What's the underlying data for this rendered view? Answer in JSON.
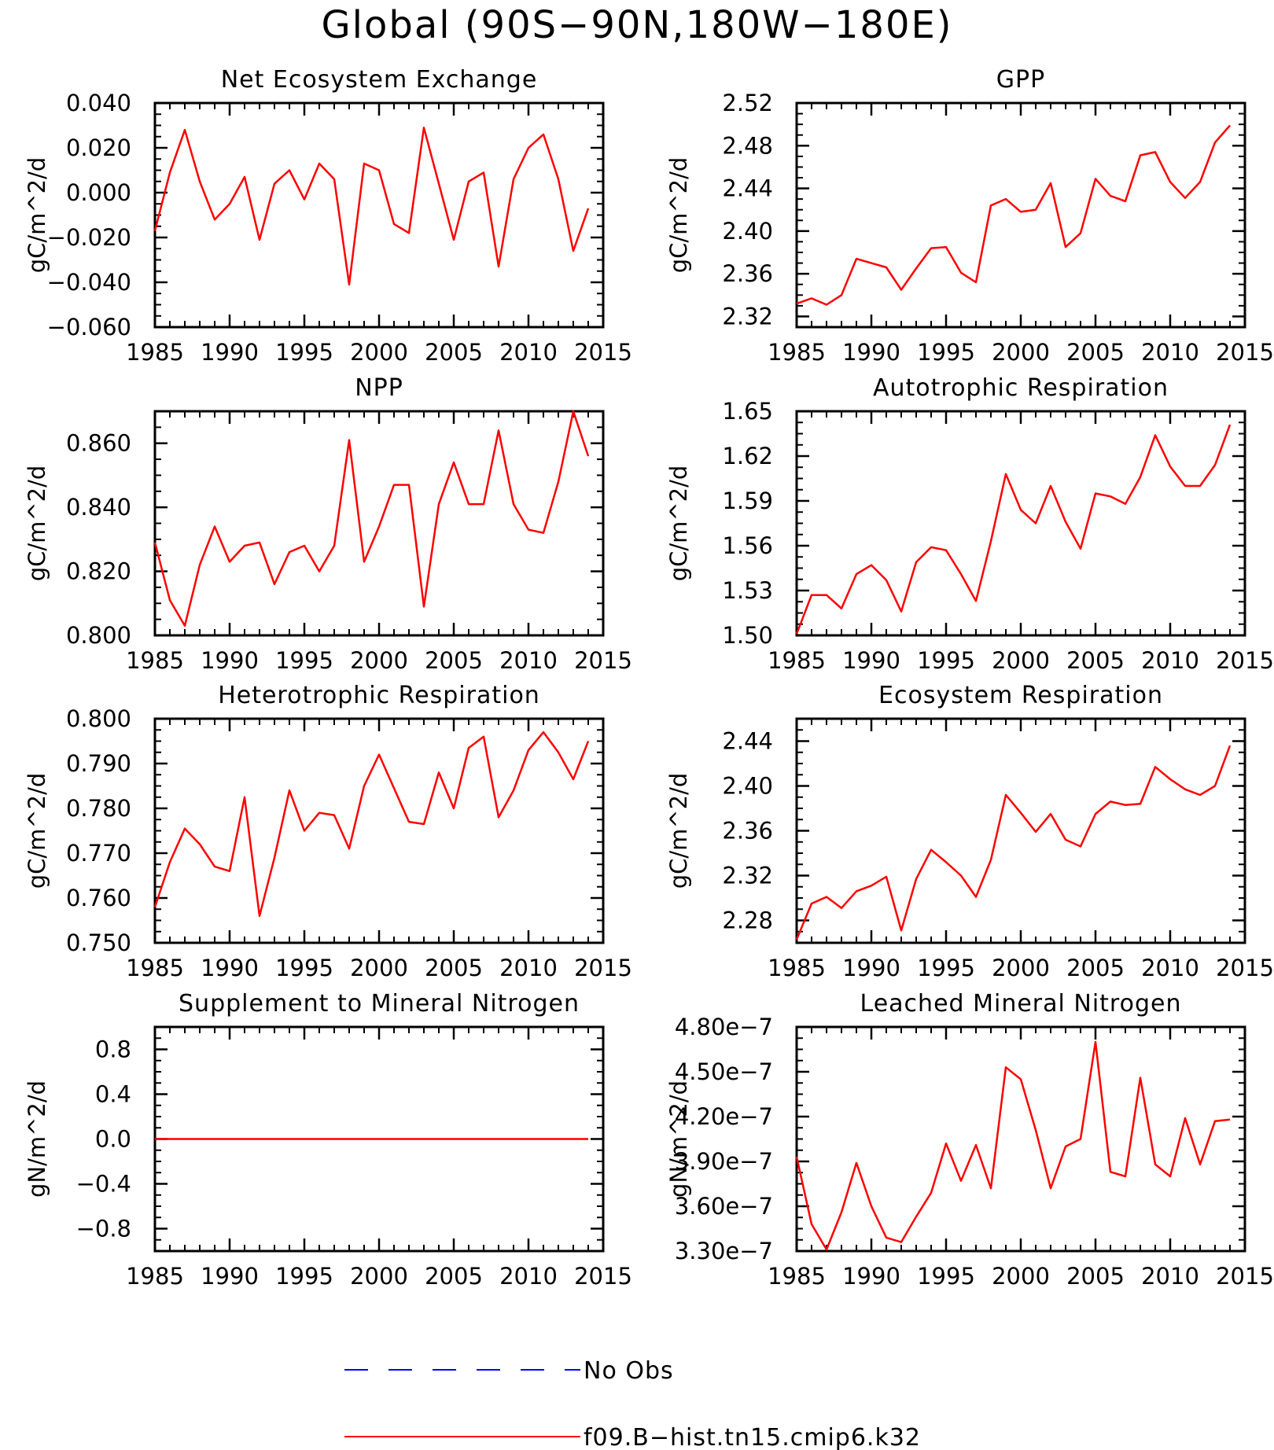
{
  "figure": {
    "title": "Global (90S−90N,180W−180E)"
  },
  "legend": [
    {
      "label": "No Obs",
      "color": "#0000ff",
      "style": "dashed"
    },
    {
      "label": "f09.B−hist.tn15.cmip6.k32",
      "color": "#ff0000",
      "style": "solid"
    }
  ],
  "chart_data": [
    {
      "type": "line",
      "title": "Net Ecosystem Exchange",
      "ylabel": "gC/m^2/d",
      "xlim": [
        1985,
        2015
      ],
      "ylim": [
        -0.06,
        0.04
      ],
      "yticks": [
        -0.06,
        -0.04,
        -0.02,
        0.0,
        0.02,
        0.04
      ],
      "ytick_labels": [
        "−0.060",
        "−0.040",
        "−0.020",
        "0.000",
        "0.020",
        "0.040"
      ],
      "xticks": [
        1985,
        1990,
        1995,
        2000,
        2005,
        2010,
        2015
      ],
      "xtick_labels": [
        "1985",
        "1990",
        "1995",
        "2000",
        "2005",
        "2010",
        "2015"
      ],
      "series": [
        {
          "name": "f09.B−hist.tn15.cmip6.k32",
          "color": "#ff0000",
          "x": [
            1985,
            1986,
            1987,
            1988,
            1989,
            1990,
            1991,
            1992,
            1993,
            1994,
            1995,
            1996,
            1997,
            1998,
            1999,
            2000,
            2001,
            2002,
            2003,
            2004,
            2005,
            2006,
            2007,
            2008,
            2009,
            2010,
            2011,
            2012,
            2013,
            2014
          ],
          "y": [
            -0.017,
            0.009,
            0.028,
            0.005,
            -0.012,
            -0.005,
            0.007,
            -0.021,
            0.004,
            0.01,
            -0.003,
            0.013,
            0.006,
            -0.041,
            0.013,
            0.01,
            -0.014,
            -0.018,
            0.029,
            0.004,
            -0.021,
            0.005,
            0.009,
            -0.033,
            0.006,
            0.02,
            0.026,
            0.006,
            -0.026,
            -0.007
          ]
        }
      ]
    },
    {
      "type": "line",
      "title": "GPP",
      "ylabel": "gC/m^2/d",
      "xlim": [
        1985,
        2015
      ],
      "ylim": [
        2.31,
        2.52
      ],
      "yticks": [
        2.32,
        2.36,
        2.4,
        2.44,
        2.48,
        2.52
      ],
      "ytick_labels": [
        "2.32",
        "2.36",
        "2.40",
        "2.44",
        "2.48",
        "2.52"
      ],
      "xticks": [
        1985,
        1990,
        1995,
        2000,
        2005,
        2010,
        2015
      ],
      "xtick_labels": [
        "1985",
        "1990",
        "1995",
        "2000",
        "2005",
        "2010",
        "2015"
      ],
      "series": [
        {
          "name": "f09.B−hist.tn15.cmip6.k32",
          "color": "#ff0000",
          "x": [
            1985,
            1986,
            1987,
            1988,
            1989,
            1990,
            1991,
            1992,
            1993,
            1994,
            1995,
            1996,
            1997,
            1998,
            1999,
            2000,
            2001,
            2002,
            2003,
            2004,
            2005,
            2006,
            2007,
            2008,
            2009,
            2010,
            2011,
            2012,
            2013,
            2014
          ],
          "y": [
            2.332,
            2.337,
            2.331,
            2.34,
            2.374,
            2.37,
            2.366,
            2.345,
            2.365,
            2.384,
            2.385,
            2.361,
            2.352,
            2.424,
            2.43,
            2.418,
            2.42,
            2.445,
            2.385,
            2.398,
            2.449,
            2.433,
            2.428,
            2.471,
            2.474,
            2.446,
            2.431,
            2.446,
            2.483,
            2.499
          ]
        }
      ]
    },
    {
      "type": "line",
      "title": "NPP",
      "ylabel": "gC/m^2/d",
      "xlim": [
        1985,
        2015
      ],
      "ylim": [
        0.8,
        0.87
      ],
      "yticks": [
        0.8,
        0.82,
        0.84,
        0.86
      ],
      "ytick_labels": [
        "0.800",
        "0.820",
        "0.840",
        "0.860"
      ],
      "xticks": [
        1985,
        1990,
        1995,
        2000,
        2005,
        2010,
        2015
      ],
      "xtick_labels": [
        "1985",
        "1990",
        "1995",
        "2000",
        "2005",
        "2010",
        "2015"
      ],
      "series": [
        {
          "name": "f09.B−hist.tn15.cmip6.k32",
          "color": "#ff0000",
          "x": [
            1985,
            1986,
            1987,
            1988,
            1989,
            1990,
            1991,
            1992,
            1993,
            1994,
            1995,
            1996,
            1997,
            1998,
            1999,
            2000,
            2001,
            2002,
            2003,
            2004,
            2005,
            2006,
            2007,
            2008,
            2009,
            2010,
            2011,
            2012,
            2013,
            2014
          ],
          "y": [
            0.829,
            0.811,
            0.803,
            0.822,
            0.834,
            0.823,
            0.828,
            0.829,
            0.816,
            0.826,
            0.828,
            0.82,
            0.828,
            0.861,
            0.823,
            0.834,
            0.847,
            0.847,
            0.809,
            0.841,
            0.854,
            0.841,
            0.841,
            0.864,
            0.841,
            0.833,
            0.832,
            0.848,
            0.87,
            0.856
          ]
        }
      ]
    },
    {
      "type": "line",
      "title": "Autotrophic Respiration",
      "ylabel": "gC/m^2/d",
      "xlim": [
        1985,
        2015
      ],
      "ylim": [
        1.5,
        1.65
      ],
      "yticks": [
        1.5,
        1.53,
        1.56,
        1.59,
        1.62,
        1.65
      ],
      "ytick_labels": [
        "1.50",
        "1.53",
        "1.56",
        "1.59",
        "1.62",
        "1.65"
      ],
      "xticks": [
        1985,
        1990,
        1995,
        2000,
        2005,
        2010,
        2015
      ],
      "xtick_labels": [
        "1985",
        "1990",
        "1995",
        "2000",
        "2005",
        "2010",
        "2015"
      ],
      "series": [
        {
          "name": "f09.B−hist.tn15.cmip6.k32",
          "color": "#ff0000",
          "x": [
            1985,
            1986,
            1987,
            1988,
            1989,
            1990,
            1991,
            1992,
            1993,
            1994,
            1995,
            1996,
            1997,
            1998,
            1999,
            2000,
            2001,
            2002,
            2003,
            2004,
            2005,
            2006,
            2007,
            2008,
            2009,
            2010,
            2011,
            2012,
            2013,
            2014
          ],
          "y": [
            1.501,
            1.527,
            1.527,
            1.518,
            1.541,
            1.547,
            1.537,
            1.516,
            1.549,
            1.559,
            1.557,
            1.541,
            1.523,
            1.563,
            1.608,
            1.584,
            1.575,
            1.6,
            1.576,
            1.558,
            1.595,
            1.593,
            1.588,
            1.606,
            1.634,
            1.613,
            1.6,
            1.6,
            1.614,
            1.641
          ]
        }
      ]
    },
    {
      "type": "line",
      "title": "Heterotrophic Respiration",
      "ylabel": "gC/m^2/d",
      "xlim": [
        1985,
        2015
      ],
      "ylim": [
        0.75,
        0.8
      ],
      "yticks": [
        0.75,
        0.76,
        0.77,
        0.78,
        0.79,
        0.8
      ],
      "ytick_labels": [
        "0.750",
        "0.760",
        "0.770",
        "0.780",
        "0.790",
        "0.800"
      ],
      "xticks": [
        1985,
        1990,
        1995,
        2000,
        2005,
        2010,
        2015
      ],
      "xtick_labels": [
        "1985",
        "1990",
        "1995",
        "2000",
        "2005",
        "2010",
        "2015"
      ],
      "series": [
        {
          "name": "f09.B−hist.tn15.cmip6.k32",
          "color": "#ff0000",
          "x": [
            1985,
            1986,
            1987,
            1988,
            1989,
            1990,
            1991,
            1992,
            1993,
            1994,
            1995,
            1996,
            1997,
            1998,
            1999,
            2000,
            2001,
            2002,
            2003,
            2004,
            2005,
            2006,
            2007,
            2008,
            2009,
            2010,
            2011,
            2012,
            2013,
            2014
          ],
          "y": [
            0.758,
            0.768,
            0.7755,
            0.772,
            0.767,
            0.766,
            0.7825,
            0.756,
            0.769,
            0.784,
            0.775,
            0.779,
            0.7785,
            0.771,
            0.785,
            0.792,
            0.7845,
            0.777,
            0.7765,
            0.788,
            0.78,
            0.7935,
            0.796,
            0.778,
            0.784,
            0.793,
            0.797,
            0.7925,
            0.7865,
            0.795
          ]
        }
      ]
    },
    {
      "type": "line",
      "title": "Ecosystem Respiration",
      "ylabel": "gC/m^2/d",
      "xlim": [
        1985,
        2015
      ],
      "ylim": [
        2.26,
        2.46
      ],
      "yticks": [
        2.28,
        2.32,
        2.36,
        2.4,
        2.44
      ],
      "ytick_labels": [
        "2.28",
        "2.32",
        "2.36",
        "2.40",
        "2.44"
      ],
      "xticks": [
        1985,
        1990,
        1995,
        2000,
        2005,
        2010,
        2015
      ],
      "xtick_labels": [
        "1985",
        "1990",
        "1995",
        "2000",
        "2005",
        "2010",
        "2015"
      ],
      "series": [
        {
          "name": "f09.B−hist.tn15.cmip6.k32",
          "color": "#ff0000",
          "x": [
            1985,
            1986,
            1987,
            1988,
            1989,
            1990,
            1991,
            1992,
            1993,
            1994,
            1995,
            1996,
            1997,
            1998,
            1999,
            2000,
            2001,
            2002,
            2003,
            2004,
            2005,
            2006,
            2007,
            2008,
            2009,
            2010,
            2011,
            2012,
            2013,
            2014
          ],
          "y": [
            2.263,
            2.295,
            2.301,
            2.291,
            2.306,
            2.311,
            2.319,
            2.271,
            2.317,
            2.343,
            2.332,
            2.32,
            2.301,
            2.334,
            2.392,
            2.376,
            2.359,
            2.375,
            2.352,
            2.346,
            2.375,
            2.386,
            2.383,
            2.384,
            2.417,
            2.406,
            2.397,
            2.392,
            2.4,
            2.436
          ]
        }
      ]
    },
    {
      "type": "line",
      "title": "Supplement to Mineral Nitrogen",
      "ylabel": "gN/m^2/d",
      "xlim": [
        1985,
        2015
      ],
      "ylim": [
        -1.0,
        1.0
      ],
      "yticks": [
        -0.8,
        -0.4,
        0.0,
        0.4,
        0.8
      ],
      "ytick_labels": [
        "−0.8",
        "−0.4",
        "0.0",
        "0.4",
        "0.8"
      ],
      "xticks": [
        1985,
        1990,
        1995,
        2000,
        2005,
        2010,
        2015
      ],
      "xtick_labels": [
        "1985",
        "1990",
        "1995",
        "2000",
        "2005",
        "2010",
        "2015"
      ],
      "series": [
        {
          "name": "f09.B−hist.tn15.cmip6.k32",
          "color": "#ff0000",
          "x": [
            1985,
            1986,
            1987,
            1988,
            1989,
            1990,
            1991,
            1992,
            1993,
            1994,
            1995,
            1996,
            1997,
            1998,
            1999,
            2000,
            2001,
            2002,
            2003,
            2004,
            2005,
            2006,
            2007,
            2008,
            2009,
            2010,
            2011,
            2012,
            2013,
            2014
          ],
          "y": [
            0,
            0,
            0,
            0,
            0,
            0,
            0,
            0,
            0,
            0,
            0,
            0,
            0,
            0,
            0,
            0,
            0,
            0,
            0,
            0,
            0,
            0,
            0,
            0,
            0,
            0,
            0,
            0,
            0,
            0
          ]
        }
      ]
    },
    {
      "type": "line",
      "title": "Leached Mineral Nitrogen",
      "ylabel": "gN/m^2/d",
      "xlim": [
        1985,
        2015
      ],
      "ylim": [
        3.3e-07,
        4.8e-07
      ],
      "yticks": [
        3.3e-07,
        3.6e-07,
        3.9e-07,
        4.2e-07,
        4.5e-07,
        4.8e-07
      ],
      "ytick_labels": [
        "3.30e−7",
        "3.60e−7",
        "3.90e−7",
        "4.20e−7",
        "4.50e−7",
        "4.80e−7"
      ],
      "xticks": [
        1985,
        1990,
        1995,
        2000,
        2005,
        2010,
        2015
      ],
      "xtick_labels": [
        "1985",
        "1990",
        "1995",
        "2000",
        "2005",
        "2010",
        "2015"
      ],
      "series": [
        {
          "name": "f09.B−hist.tn15.cmip6.k32",
          "color": "#ff0000",
          "x": [
            1985,
            1986,
            1987,
            1988,
            1989,
            1990,
            1991,
            1992,
            1993,
            1994,
            1995,
            1996,
            1997,
            1998,
            1999,
            2000,
            2001,
            2002,
            2003,
            2004,
            2005,
            2006,
            2007,
            2008,
            2009,
            2010,
            2011,
            2012,
            2013,
            2014
          ],
          "y": [
            3.93e-07,
            3.48e-07,
            3.31e-07,
            3.56e-07,
            3.89e-07,
            3.6e-07,
            3.39e-07,
            3.36e-07,
            3.53e-07,
            3.69e-07,
            4.02e-07,
            3.77e-07,
            4.01e-07,
            3.72e-07,
            4.53e-07,
            4.45e-07,
            4.11e-07,
            3.72e-07,
            4e-07,
            4.05e-07,
            4.7e-07,
            3.83e-07,
            3.8e-07,
            4.46e-07,
            3.88e-07,
            3.8e-07,
            4.19e-07,
            3.88e-07,
            4.17e-07,
            4.18e-07
          ]
        }
      ]
    }
  ]
}
